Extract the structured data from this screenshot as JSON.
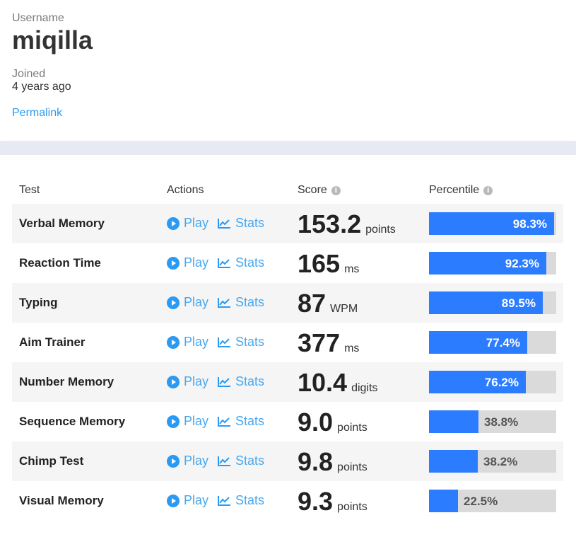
{
  "profile": {
    "username_label": "Username",
    "username": "miqilla",
    "joined_label": "Joined",
    "joined": "4 years ago",
    "permalink": "Permalink"
  },
  "table": {
    "headers": {
      "test": "Test",
      "actions": "Actions",
      "score": "Score",
      "percentile": "Percentile"
    },
    "info_icon": "i",
    "play_label": "Play",
    "stats_label": "Stats",
    "rows": [
      {
        "test": "Verbal Memory",
        "score": "153.2",
        "unit": "points",
        "percentile": "98.3%",
        "percentile_value": 98.3
      },
      {
        "test": "Reaction Time",
        "score": "165",
        "unit": "ms",
        "percentile": "92.3%",
        "percentile_value": 92.3
      },
      {
        "test": "Typing",
        "score": "87",
        "unit": "WPM",
        "percentile": "89.5%",
        "percentile_value": 89.5
      },
      {
        "test": "Aim Trainer",
        "score": "377",
        "unit": "ms",
        "percentile": "77.4%",
        "percentile_value": 77.4
      },
      {
        "test": "Number Memory",
        "score": "10.4",
        "unit": "digits",
        "percentile": "76.2%",
        "percentile_value": 76.2
      },
      {
        "test": "Sequence Memory",
        "score": "9.0",
        "unit": "points",
        "percentile": "38.8%",
        "percentile_value": 38.8
      },
      {
        "test": "Chimp Test",
        "score": "9.8",
        "unit": "points",
        "percentile": "38.2%",
        "percentile_value": 38.2
      },
      {
        "test": "Visual Memory",
        "score": "9.3",
        "unit": "points",
        "percentile": "22.5%",
        "percentile_value": 22.5
      }
    ]
  },
  "colors": {
    "accent": "#2b7cff",
    "link": "#2b9af3",
    "bar_track": "#dadada",
    "band": "#e8eaf3"
  },
  "icons": {
    "play": "play-circle-icon",
    "stats": "line-chart-icon",
    "info": "info-icon"
  }
}
